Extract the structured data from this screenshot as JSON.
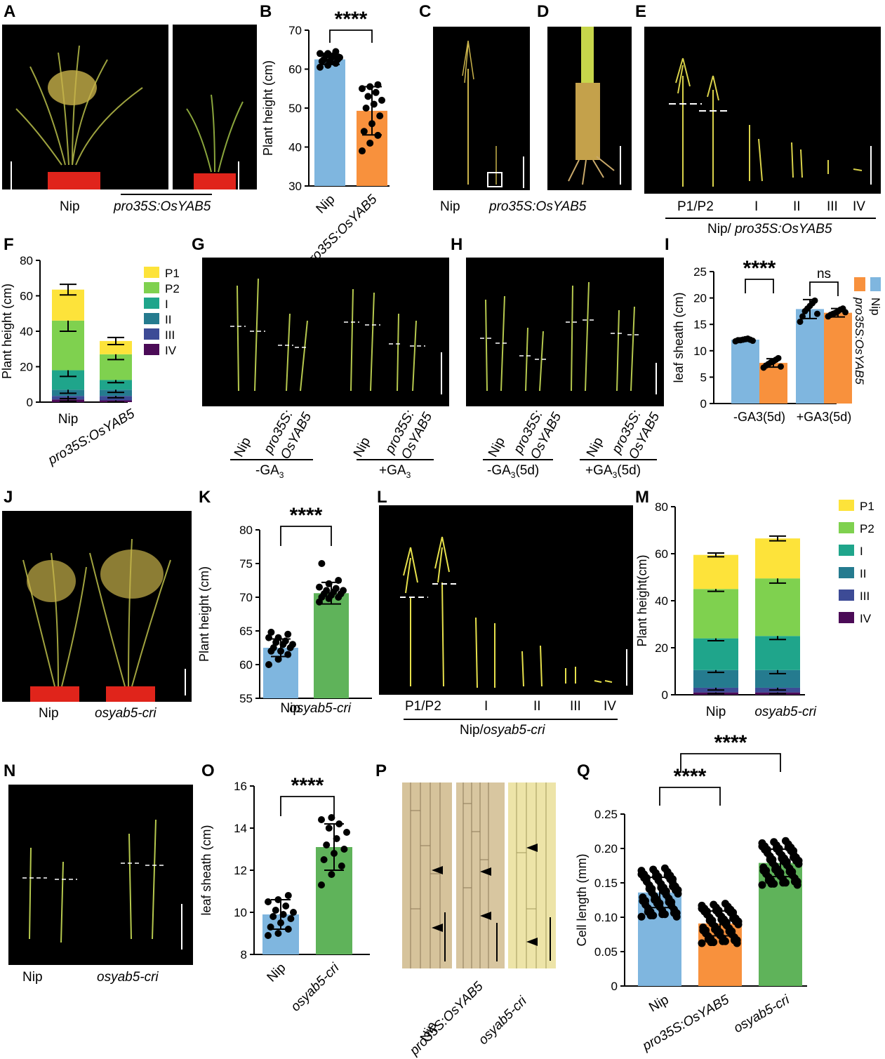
{
  "panels": {
    "A": {
      "letter": "A",
      "labels": [
        "Nip",
        "pro35S:OsYAB5"
      ]
    },
    "B": {
      "letter": "B",
      "chart_ref": 0
    },
    "C": {
      "letter": "C",
      "labels": [
        "Nip",
        "pro35S:OsYAB5"
      ]
    },
    "D": {
      "letter": "D"
    },
    "E": {
      "letter": "E",
      "labels": [
        "P1/P2",
        "I",
        "II",
        "III",
        "IV"
      ],
      "caption_prefix": "Nip/ ",
      "caption_genotype": "pro35S:OsYAB5"
    },
    "F": {
      "letter": "F",
      "chart_ref": 1
    },
    "G": {
      "letter": "G",
      "labels": [
        "Nip",
        "pro35S:",
        "OsYAB5",
        "Nip",
        "pro35S:",
        "OsYAB5"
      ],
      "groups": [
        "-GA",
        "+GA"
      ],
      "sub": "3"
    },
    "H": {
      "letter": "H",
      "labels": [
        "Nip",
        "pro35S:",
        "OsYAB5",
        "Nip",
        "pro35S:",
        "OsYAB5"
      ],
      "groups": [
        "-GA",
        "+GA"
      ],
      "sub": "3",
      "suffix": "(5d)"
    },
    "I": {
      "letter": "I",
      "chart_ref": 2
    },
    "J": {
      "letter": "J",
      "labels": [
        "Nip",
        "osyab5-cri"
      ]
    },
    "K": {
      "letter": "K",
      "chart_ref": 3
    },
    "L": {
      "letter": "L",
      "labels": [
        "P1/P2",
        "I",
        "II",
        "III",
        "IV"
      ],
      "caption_prefix": "Nip/",
      "caption_genotype": "osyab5-cri"
    },
    "M": {
      "letter": "M",
      "chart_ref": 4
    },
    "N": {
      "letter": "N",
      "labels": [
        "Nip",
        "osyab5-cri"
      ]
    },
    "O": {
      "letter": "O",
      "chart_ref": 5
    },
    "P": {
      "letter": "P",
      "labels": [
        "Nip",
        "pro35S:OsYAB5",
        "osyab5-cri"
      ]
    },
    "Q": {
      "letter": "Q",
      "chart_ref": 6
    }
  },
  "colors": {
    "blue": "#7fb6df",
    "orange": "#f8913d",
    "green": "#5fb35a",
    "p1": "#fde33a",
    "p2": "#7fd14f",
    "I": "#1fa58b",
    "II": "#257b8f",
    "III": "#3d4b96",
    "IV": "#4b0b57"
  },
  "chart_data": [
    {
      "panel": "B",
      "type": "bar",
      "categories": [
        "Nip",
        "pro35S:OsYAB5"
      ],
      "values": [
        62.5,
        49.3
      ],
      "errors": [
        1.3,
        6.2
      ],
      "ylabel": "Plant height (cm)",
      "ylim": [
        30,
        70
      ],
      "yticks": [
        30,
        40,
        50,
        60,
        70
      ],
      "significance": "****",
      "points": [
        [
          60.5,
          61,
          61.5,
          62,
          62,
          62.5,
          62.5,
          63,
          63,
          63.5,
          63.5,
          64,
          64,
          64.5
        ],
        [
          39,
          41,
          43,
          44,
          46,
          48,
          50,
          51,
          52,
          53,
          54,
          55,
          55.5,
          56
        ]
      ]
    },
    {
      "panel": "F",
      "type": "bar",
      "stacked": true,
      "categories": [
        "Nip",
        "pro35S:OsYAB5"
      ],
      "ylabel": "Plant height (cm)",
      "ylim": [
        0,
        80
      ],
      "yticks": [
        0,
        20,
        40,
        60,
        80
      ],
      "series": [
        {
          "name": "IV",
          "values": [
            1.5,
            1.0
          ],
          "errors": [
            1.0,
            1.0
          ]
        },
        {
          "name": "III",
          "values": [
            2.0,
            2.5
          ],
          "errors": [
            1.5,
            1.0
          ]
        },
        {
          "name": "II",
          "values": [
            3.5,
            3.5
          ],
          "errors": [
            2.0,
            1.5
          ]
        },
        {
          "name": "I",
          "values": [
            11.0,
            5.5
          ],
          "errors": [
            3.5,
            1.5
          ]
        },
        {
          "name": "P2",
          "values": [
            28.0,
            14.5
          ],
          "errors": [
            6.0,
            3.0
          ]
        },
        {
          "name": "P1",
          "values": [
            17.5,
            7.5
          ],
          "errors": [
            3.0,
            2.0
          ]
        }
      ]
    },
    {
      "panel": "I",
      "type": "bar",
      "categories": [
        "-GA3(5d)",
        "+GA3(5d)"
      ],
      "ylabel": "leaf sheath  (cm)",
      "ylim": [
        0,
        25
      ],
      "yticks": [
        0,
        5,
        10,
        15,
        20,
        25
      ],
      "series": [
        {
          "name": "Nip",
          "values": [
            12.1,
            17.9
          ],
          "errors": [
            0.3,
            1.8
          ]
        },
        {
          "name": "pro35S:OsYAB5",
          "values": [
            7.7,
            17.2
          ],
          "errors": [
            0.8,
            0.8
          ]
        }
      ],
      "significance": [
        "****",
        "ns"
      ],
      "points": [
        [
          [
            11.8,
            12,
            12,
            12.1,
            12.2,
            12.3,
            12.1,
            11.9
          ],
          [
            6.8,
            7.2,
            7.5,
            7.8,
            8.0,
            8.3,
            8.6,
            7.0
          ]
        ],
        [
          [
            15.5,
            16.5,
            17.5,
            18,
            18.5,
            19,
            19.5,
            17
          ],
          [
            16.5,
            16.8,
            17,
            17.2,
            17.5,
            17.8,
            18,
            17.3
          ]
        ]
      ]
    },
    {
      "panel": "K",
      "type": "bar",
      "categories": [
        "Nip",
        "osyab5-cri"
      ],
      "values": [
        62.5,
        70.6
      ],
      "errors": [
        1.3,
        1.6
      ],
      "ylabel": "Plant height (cm)",
      "ylim": [
        55,
        80
      ],
      "yticks": [
        55,
        60,
        65,
        70,
        75,
        80
      ],
      "significance": "****",
      "points": [
        [
          60,
          60.8,
          61.5,
          62,
          62,
          62.5,
          62.5,
          63,
          63,
          63.3,
          63.5,
          64,
          64,
          64.5,
          64.8
        ],
        [
          69.3,
          69.8,
          70,
          70,
          70.3,
          70.5,
          70.5,
          70.8,
          71,
          71,
          71.3,
          71.5,
          72,
          72.5,
          75
        ]
      ]
    },
    {
      "panel": "M",
      "type": "bar",
      "stacked": true,
      "categories": [
        "Nip",
        "osyab5-cri"
      ],
      "ylabel": "Plant height(cm)",
      "ylim": [
        0,
        80
      ],
      "yticks": [
        0,
        20,
        40,
        60,
        80
      ],
      "series": [
        {
          "name": "IV",
          "values": [
            1.0,
            1.0
          ],
          "errors": [
            0.5,
            0.5
          ]
        },
        {
          "name": "III",
          "values": [
            2.0,
            2.0
          ],
          "errors": [
            1.0,
            1.0
          ]
        },
        {
          "name": "II",
          "values": [
            7.5,
            7.5
          ],
          "errors": [
            1.0,
            1.5
          ]
        },
        {
          "name": "I",
          "values": [
            13.5,
            14.5
          ],
          "errors": [
            1.0,
            1.5
          ]
        },
        {
          "name": "P2",
          "values": [
            21.0,
            24.5
          ],
          "errors": [
            1.0,
            2.0
          ]
        },
        {
          "name": "P1",
          "values": [
            14.5,
            17.0
          ],
          "errors": [
            0.8,
            1.0
          ]
        }
      ]
    },
    {
      "panel": "O",
      "type": "bar",
      "categories": [
        "Nip",
        "osyab5-cri"
      ],
      "values": [
        9.9,
        13.1
      ],
      "errors": [
        0.7,
        1.1
      ],
      "ylabel": "leaf sheath (cm)",
      "ylim": [
        8,
        16
      ],
      "yticks": [
        8,
        10,
        12,
        14,
        16
      ],
      "significance": "****",
      "points": [
        [
          8.9,
          9.0,
          9.2,
          9.3,
          9.5,
          9.7,
          9.8,
          9.9,
          10,
          10.1,
          10.3,
          10.5,
          10.6,
          10.8
        ],
        [
          11.3,
          11.8,
          12.2,
          12.5,
          12.8,
          13,
          13.2,
          13.5,
          13.8,
          14,
          14.2,
          14.4,
          14.5
        ]
      ]
    },
    {
      "panel": "Q",
      "type": "bar",
      "categories": [
        "Nip",
        "pro35S:OsYAB5",
        "osyab5-cri"
      ],
      "values": [
        0.136,
        0.091,
        0.179
      ],
      "errors": [
        0.022,
        0.018,
        0.02
      ],
      "ylabel": "Cell length (mm)",
      "ylim": [
        0,
        0.25
      ],
      "yticks": [
        "0",
        "0.05",
        "0.10",
        "0.15",
        "0.20",
        "0.25"
      ],
      "significance": [
        "****",
        "****"
      ]
    }
  ]
}
